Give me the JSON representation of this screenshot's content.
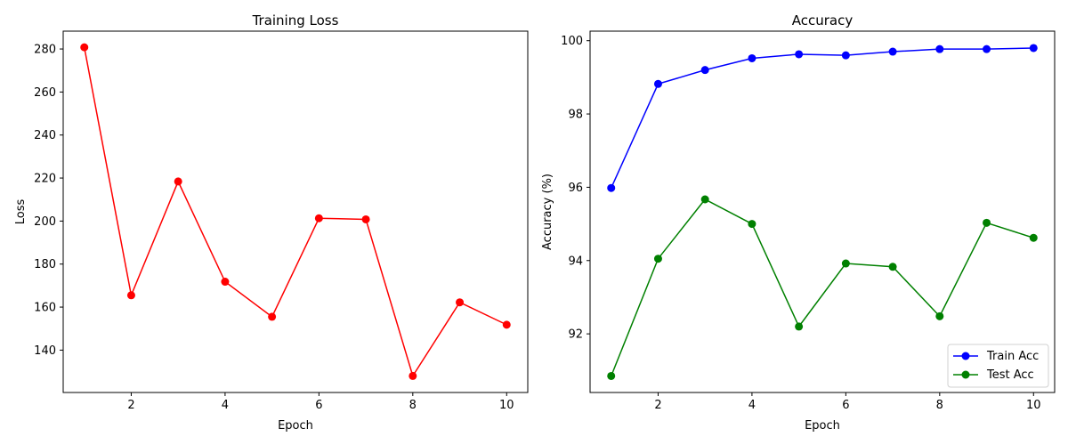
{
  "chart_data": [
    {
      "type": "line",
      "title": "Training Loss",
      "xlabel": "Epoch",
      "ylabel": "Loss",
      "xlim": [
        0.55,
        10.45
      ],
      "ylim": [
        120.3,
        288.3
      ],
      "xticks": [
        2,
        4,
        6,
        8,
        10
      ],
      "yticks": [
        140,
        160,
        180,
        200,
        220,
        240,
        260,
        280
      ],
      "grid": false,
      "legend": null,
      "series": [
        {
          "color": "#ff0000",
          "marker": "circle",
          "x": [
            1,
            2,
            3,
            4,
            5,
            6,
            7,
            8,
            9,
            10
          ],
          "values": [
            280.8,
            165.5,
            218.4,
            171.8,
            155.5,
            201.3,
            200.8,
            128.0,
            162.2,
            151.8
          ]
        }
      ]
    },
    {
      "type": "line",
      "title": "Accuracy",
      "xlabel": "Epoch",
      "ylabel": "Accuracy (%)",
      "xlim": [
        0.55,
        10.45
      ],
      "ylim": [
        90.4,
        100.26
      ],
      "xticks": [
        2,
        4,
        6,
        8,
        10
      ],
      "yticks": [
        92,
        94,
        96,
        98,
        100
      ],
      "grid": false,
      "legend": "lower-right",
      "series": [
        {
          "name": "Train Acc",
          "color": "#0000ff",
          "marker": "circle",
          "x": [
            1,
            2,
            3,
            4,
            5,
            6,
            7,
            8,
            9,
            10
          ],
          "values": [
            95.98,
            98.82,
            99.2,
            99.52,
            99.63,
            99.6,
            99.7,
            99.77,
            99.77,
            99.8
          ]
        },
        {
          "name": "Test Acc",
          "color": "#008000",
          "marker": "circle",
          "x": [
            1,
            2,
            3,
            4,
            5,
            6,
            7,
            8,
            9,
            10
          ],
          "values": [
            90.85,
            94.05,
            95.67,
            95.0,
            92.2,
            93.92,
            93.83,
            92.48,
            95.03,
            94.62
          ]
        }
      ]
    }
  ]
}
